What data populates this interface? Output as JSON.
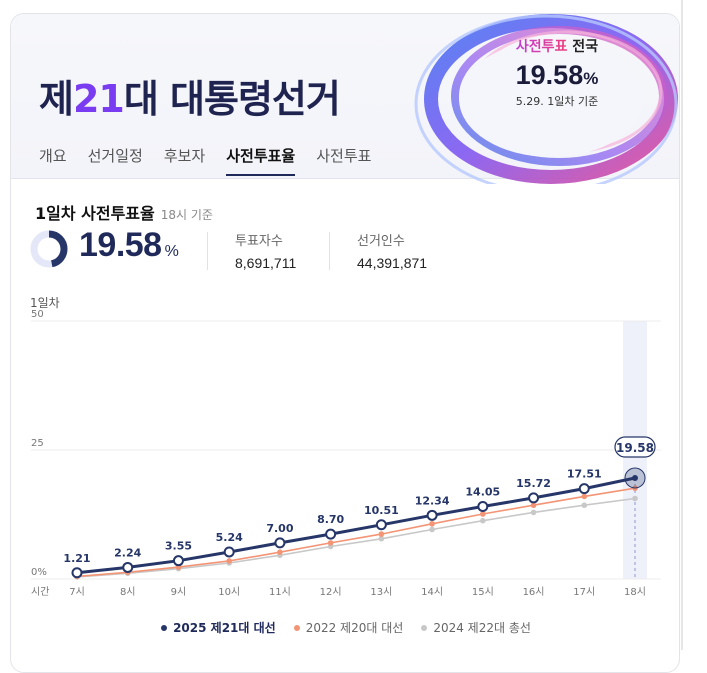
{
  "header": {
    "title_prefix": "제",
    "title_number": "21",
    "title_suffix": "대 대통령선거",
    "badge": {
      "label_highlight": "사전투표",
      "label_rest": " 전국",
      "value": "19.58",
      "unit": "%",
      "note": "5.29. 1일차 기준"
    }
  },
  "tabs": [
    {
      "label": "개요"
    },
    {
      "label": "선거일정"
    },
    {
      "label": "후보자"
    },
    {
      "label": "사전투표율",
      "active": true
    },
    {
      "label": "사전투표"
    }
  ],
  "summary": {
    "title": "1일차 사전투표율",
    "note": "18시 기준",
    "rate": "19.58",
    "rate_unit": "%",
    "rate_fraction": 0.1958,
    "voters_label": "투표자수",
    "voters_value": "8,691,711",
    "electorate_label": "선거인수",
    "electorate_value": "44,391,871"
  },
  "chart_label": "1일차",
  "chart_data": {
    "type": "line",
    "x_axis_label": "시간",
    "categories": [
      "7시",
      "8시",
      "9시",
      "10시",
      "11시",
      "12시",
      "13시",
      "14시",
      "15시",
      "16시",
      "17시",
      "18시"
    ],
    "ylim": [
      0,
      50
    ],
    "yticks": [
      "50",
      "25",
      "0%"
    ],
    "ytick_values": [
      50,
      25,
      0
    ],
    "series": [
      {
        "name": "2025 제21대 대선",
        "color": "#263668",
        "values": [
          1.21,
          2.24,
          3.55,
          5.24,
          7.0,
          8.7,
          10.51,
          12.34,
          14.05,
          15.72,
          17.51,
          19.58
        ],
        "labels": [
          "1.21",
          "2.24",
          "3.55",
          "5.24",
          "7.00",
          "8.70",
          "10.51",
          "12.34",
          "14.05",
          "15.72",
          "17.51",
          "19.58"
        ]
      },
      {
        "name": "2022 제20대 대선",
        "color": "#f39475",
        "values": [
          0.5,
          1.3,
          2.3,
          3.5,
          5.2,
          7.0,
          8.7,
          10.7,
          12.6,
          14.3,
          16.0,
          17.6
        ]
      },
      {
        "name": "2024 제22대 총선",
        "color": "#c8c8c8",
        "values": [
          0.4,
          1.1,
          2.0,
          3.1,
          4.6,
          6.3,
          7.8,
          9.6,
          11.3,
          12.9,
          14.3,
          15.6
        ]
      }
    ]
  },
  "legend": [
    {
      "label": "2025 제21대 대선",
      "color": "#263668"
    },
    {
      "label": "2022 제20대 대선",
      "color": "#f39475"
    },
    {
      "label": "2024 제22대 총선",
      "color": "#c8c8c8"
    }
  ]
}
